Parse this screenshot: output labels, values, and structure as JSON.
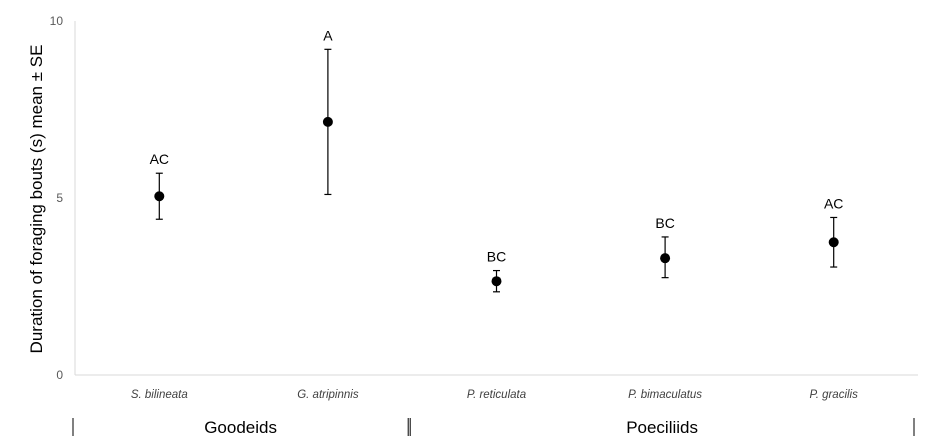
{
  "chart_data": {
    "type": "scatter",
    "title": "",
    "ylabel": "Duration of foraging bouts (s) mean ± SE",
    "xlabel": "",
    "ylim": [
      0,
      10
    ],
    "yticks": [
      0,
      5,
      10
    ],
    "grid": false,
    "categories": [
      "S. bilineata",
      "G. atripinnis",
      "P. reticulata",
      "P. bimaculatus",
      "P. gracilis"
    ],
    "series": [
      {
        "values": [
          5.05,
          7.15,
          2.65,
          3.3,
          3.75
        ],
        "error_upper": [
          5.7,
          9.2,
          2.95,
          3.9,
          4.45
        ],
        "error_lower": [
          4.4,
          5.1,
          2.35,
          2.75,
          3.05
        ],
        "labels": [
          "AC",
          "A",
          "BC",
          "BC",
          "AC"
        ]
      }
    ],
    "groups": [
      {
        "label": "Goodeids",
        "from": 0,
        "to": 1
      },
      {
        "label": "Poeciliids",
        "from": 2,
        "to": 4
      }
    ]
  }
}
